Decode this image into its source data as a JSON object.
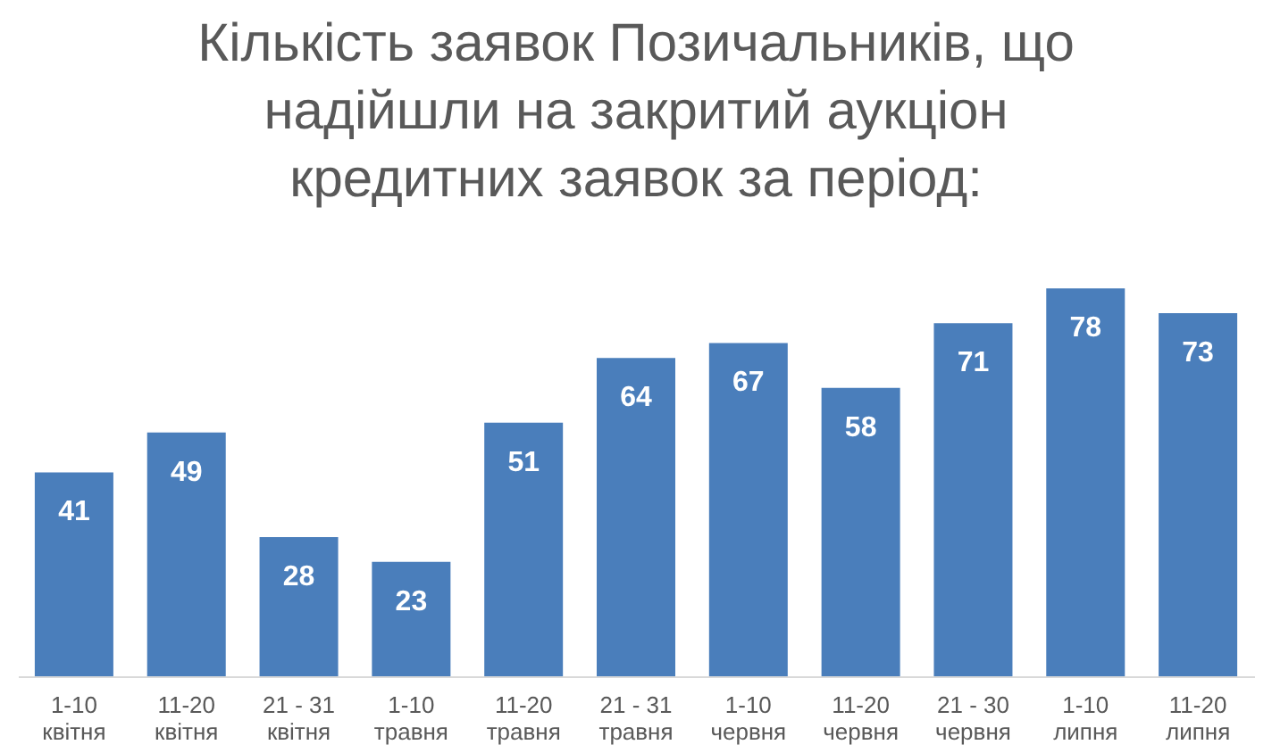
{
  "chart_data": {
    "type": "bar",
    "title": "Кількість заявок Позичальників, що\nнадійшли на закритий аукціон\nкредитних заявок за період:",
    "categories": [
      "1-10\nквітня",
      "11-20\nквітня",
      "21 - 31\nквітня",
      "1-10\nтравня",
      "11-20\nтравня",
      "21 - 31\nтравня",
      "1-10\nчервня",
      "11-20\nчервня",
      "21 - 30\nчервня",
      "1-10\nлипня",
      "11-20\nлипня"
    ],
    "values": [
      41,
      49,
      28,
      23,
      51,
      64,
      67,
      58,
      71,
      78,
      73
    ],
    "color": "#4a7ebb",
    "data_labels": true
  }
}
